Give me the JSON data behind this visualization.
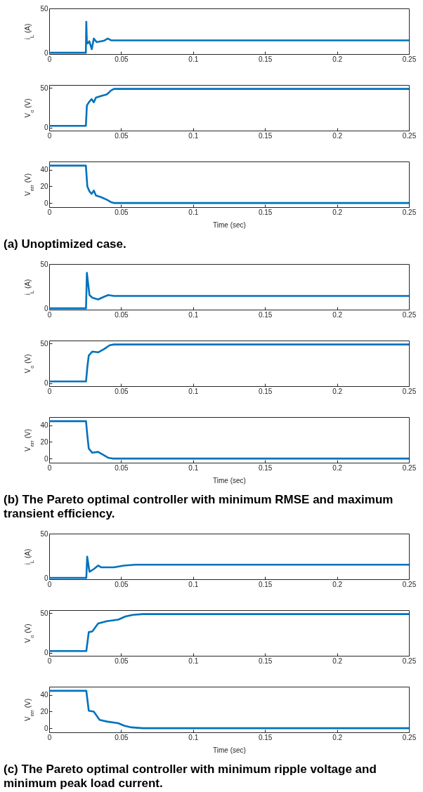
{
  "chart_data": [
    {
      "type": "line",
      "ylabel": "i$_{L}$ (A)",
      "xlim": [
        0,
        0.25
      ],
      "xticks": [
        0,
        0.05,
        0.1,
        0.15,
        0.2,
        0.25
      ],
      "ylim": [
        -1.5,
        50
      ],
      "yticks": [
        0,
        50
      ],
      "x": [
        0,
        0.0255,
        0.0258,
        0.0262,
        0.0268,
        0.0279,
        0.0296,
        0.031,
        0.033,
        0.038,
        0.0407,
        0.043,
        0.25
      ],
      "series": [
        {
          "color": "#0072bd",
          "values": [
            0,
            0,
            35,
            11,
            10.6,
            13,
            4,
            16,
            12,
            13.5,
            16,
            14,
            14
          ]
        }
      ]
    },
    {
      "type": "line",
      "ylabel": "V$_{o}$ (V)",
      "xlim": [
        0,
        0.25
      ],
      "xticks": [
        0,
        0.05,
        0.1,
        0.15,
        0.2,
        0.25
      ],
      "ylim": [
        -4,
        54
      ],
      "yticks": [
        0,
        50
      ],
      "x": [
        0,
        0.0255,
        0.0262,
        0.028,
        0.0295,
        0.031,
        0.0325,
        0.036,
        0.04,
        0.043,
        0.045,
        0.25
      ],
      "series": [
        {
          "color": "#0072bd",
          "values": [
            2,
            2,
            28,
            33,
            36,
            32,
            38,
            40,
            42,
            47,
            49,
            49
          ]
        }
      ]
    },
    {
      "type": "line",
      "ylabel": "V$_{err}$ (V)",
      "xlabel": "Time (sec)",
      "annotations": [
        "(a) Unoptimized case."
      ],
      "xlim": [
        0,
        0.25
      ],
      "xticks": [
        0,
        0.05,
        0.1,
        0.15,
        0.2,
        0.25
      ],
      "ylim": [
        -5,
        50
      ],
      "yticks": [
        0,
        20,
        40
      ],
      "x": [
        0,
        0.0255,
        0.0265,
        0.028,
        0.0295,
        0.031,
        0.0325,
        0.036,
        0.04,
        0.043,
        0.045,
        0.25
      ],
      "series": [
        {
          "color": "#0072bd",
          "values": [
            45,
            45,
            20,
            14,
            11,
            15,
            9,
            7,
            4,
            1,
            0,
            0
          ]
        }
      ]
    },
    {
      "type": "line",
      "ylabel": "i$_{L}$ (A)",
      "xlim": [
        0,
        0.25
      ],
      "xticks": [
        0,
        0.05,
        0.1,
        0.15,
        0.2,
        0.25
      ],
      "ylim": [
        -1.5,
        50
      ],
      "yticks": [
        0,
        50
      ],
      "x": [
        0,
        0.0256,
        0.0262,
        0.028,
        0.03,
        0.034,
        0.038,
        0.041,
        0.045,
        0.25
      ],
      "series": [
        {
          "color": "#0072bd",
          "values": [
            0,
            0,
            40,
            15,
            12,
            10,
            13,
            15,
            14,
            14
          ]
        }
      ]
    },
    {
      "type": "line",
      "ylabel": "V$_{o}$ (V)",
      "xlim": [
        0,
        0.25
      ],
      "xticks": [
        0,
        0.05,
        0.1,
        0.15,
        0.2,
        0.25
      ],
      "ylim": [
        -4,
        54
      ],
      "yticks": [
        0,
        50
      ],
      "x": [
        0,
        0.0256,
        0.0265,
        0.0275,
        0.03,
        0.034,
        0.038,
        0.042,
        0.045,
        0.25
      ],
      "series": [
        {
          "color": "#0072bd",
          "values": [
            2,
            2,
            20,
            35,
            40,
            39,
            43,
            48,
            49,
            49
          ]
        }
      ]
    },
    {
      "type": "line",
      "ylabel": "V$_{err}$ (V)",
      "xlabel": "Time (sec)",
      "annotations": [
        "(b) The Pareto optimal controller with minimum RMSE and maximum transient efficiency."
      ],
      "xlim": [
        0,
        0.25
      ],
      "xticks": [
        0,
        0.05,
        0.1,
        0.15,
        0.2,
        0.25
      ],
      "ylim": [
        -5,
        50
      ],
      "yticks": [
        0,
        20,
        40
      ],
      "x": [
        0,
        0.0256,
        0.0265,
        0.0275,
        0.03,
        0.034,
        0.037,
        0.041,
        0.044,
        0.25
      ],
      "series": [
        {
          "color": "#0072bd",
          "values": [
            45,
            45,
            28,
            12,
            7,
            8,
            5,
            1,
            0,
            0
          ]
        }
      ]
    },
    {
      "type": "line",
      "ylabel": "i$_{L}$ (A)",
      "xlim": [
        0,
        0.25
      ],
      "xticks": [
        0,
        0.05,
        0.1,
        0.15,
        0.2,
        0.25
      ],
      "ylim": [
        -1.5,
        50
      ],
      "yticks": [
        0,
        50
      ],
      "x": [
        0,
        0.0258,
        0.0264,
        0.028,
        0.031,
        0.034,
        0.036,
        0.045,
        0.052,
        0.06,
        0.25
      ],
      "series": [
        {
          "color": "#0072bd",
          "values": [
            0,
            0,
            24,
            7,
            10,
            14,
            12,
            12,
            14,
            15,
            15
          ]
        }
      ]
    },
    {
      "type": "line",
      "ylabel": "V$_{o}$ (V)",
      "xlim": [
        0,
        0.25
      ],
      "xticks": [
        0,
        0.05,
        0.1,
        0.15,
        0.2,
        0.25
      ],
      "ylim": [
        -4,
        54
      ],
      "yticks": [
        0,
        50
      ],
      "x": [
        0,
        0.0258,
        0.0275,
        0.03,
        0.034,
        0.04,
        0.048,
        0.053,
        0.058,
        0.065,
        0.25
      ],
      "series": [
        {
          "color": "#0072bd",
          "values": [
            2,
            2,
            26,
            27,
            37,
            40,
            42,
            46,
            48,
            49,
            49
          ]
        }
      ]
    },
    {
      "type": "line",
      "ylabel": "V$_{err}$ (V)",
      "xlabel": "Time (sec)",
      "annotations": [
        "(c) The Pareto optimal controller with minimum ripple voltage and minimum peak load current."
      ],
      "xlim": [
        0,
        0.25
      ],
      "xticks": [
        0,
        0.05,
        0.1,
        0.15,
        0.2,
        0.25
      ],
      "ylim": [
        -5,
        50
      ],
      "yticks": [
        0,
        20,
        40
      ],
      "x": [
        0,
        0.0258,
        0.0275,
        0.031,
        0.035,
        0.04,
        0.048,
        0.052,
        0.057,
        0.065,
        0.25
      ],
      "series": [
        {
          "color": "#0072bd",
          "values": [
            45,
            45,
            21,
            20,
            10,
            8,
            6,
            3,
            1,
            0,
            0
          ]
        }
      ]
    }
  ]
}
